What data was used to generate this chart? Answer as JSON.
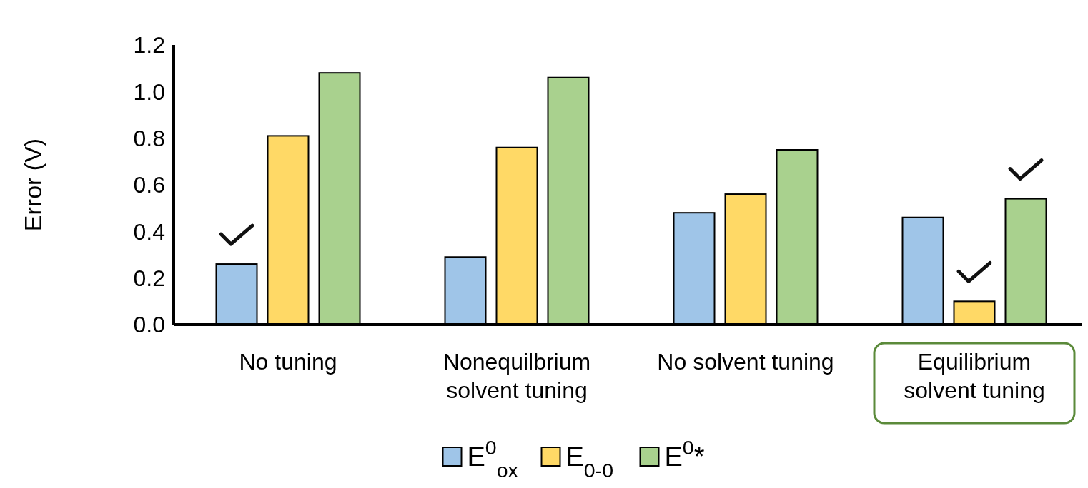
{
  "chart_data": {
    "type": "bar",
    "ylabel": "Error (V)",
    "categories": [
      "No tuning",
      "Nonequilbrium solvent tuning",
      "No solvent tuning",
      "Equilibrium solvent tuning"
    ],
    "series": [
      {
        "name": "E$^{0}$$_{ox}$",
        "color": "#9fc5e8",
        "values": [
          0.26,
          0.29,
          0.48,
          0.46
        ]
      },
      {
        "name": "E$_{0-0}$",
        "color": "#ffd966",
        "values": [
          0.81,
          0.76,
          0.56,
          0.1
        ]
      },
      {
        "name": "E$^{0}$*",
        "color": "#a9d18e",
        "values": [
          1.08,
          1.06,
          0.75,
          0.54
        ]
      }
    ],
    "ylim": [
      0,
      1.2
    ],
    "yticks": [
      {
        "value": 0,
        "label": "0.0"
      },
      {
        "value": 0.2,
        "label": "0.2"
      },
      {
        "value": 0.4,
        "label": "0.4"
      },
      {
        "value": 0.6,
        "label": "0.6"
      },
      {
        "value": 0.8,
        "label": "0.8"
      },
      {
        "value": 1,
        "label": "1.0"
      },
      {
        "value": 1.2,
        "label": "1.2"
      }
    ],
    "grid": false,
    "legend": "bottom"
  }
}
